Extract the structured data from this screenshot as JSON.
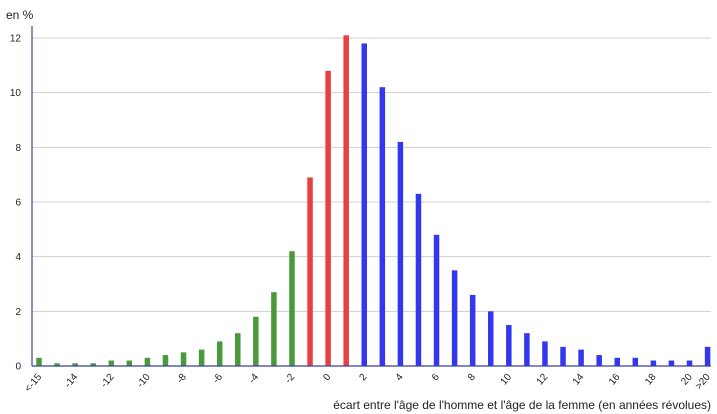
{
  "chart_data": {
    "type": "bar",
    "ylabel": "en %",
    "xlabel": "écart entre l'âge de l'homme et l'âge de la femme (en années révolues)",
    "ylim": [
      0,
      12
    ],
    "yticks": [
      0,
      2,
      4,
      6,
      8,
      10,
      12
    ],
    "grid": true,
    "categories": [
      "<-15",
      "-15",
      "-14",
      "-13",
      "-12",
      "-11",
      "-10",
      "-9",
      "-8",
      "-7",
      "-6",
      "-5",
      "-4",
      "-3",
      "-2",
      "-1",
      "0",
      "1",
      "2",
      "3",
      "4",
      "5",
      "6",
      "7",
      "8",
      "9",
      "10",
      "11",
      "12",
      "13",
      "14",
      "15",
      "16",
      "17",
      "18",
      "19",
      "20",
      ">20"
    ],
    "xtick_labels": [
      "<-15",
      "-14",
      "-12",
      "-10",
      "-8",
      "-6",
      "-4",
      "-2",
      "0",
      "2",
      "4",
      "6",
      "8",
      "10",
      "12",
      "14",
      "16",
      "18",
      "20",
      ">20"
    ],
    "values": [
      0.3,
      0.1,
      0.1,
      0.1,
      0.2,
      0.2,
      0.3,
      0.4,
      0.5,
      0.6,
      0.9,
      1.2,
      1.8,
      2.7,
      4.2,
      6.9,
      10.8,
      12.1,
      11.8,
      10.2,
      8.2,
      6.3,
      4.8,
      3.5,
      2.6,
      2.0,
      1.5,
      1.2,
      0.9,
      0.7,
      0.6,
      0.4,
      0.3,
      0.3,
      0.2,
      0.2,
      0.2,
      0.7
    ],
    "colors": {
      "negative": "#4a9a3c",
      "near_zero": "#e84040",
      "positive": "#3338ee",
      "axis": "#3b3fa0",
      "grid": "#d0d0d0"
    }
  }
}
